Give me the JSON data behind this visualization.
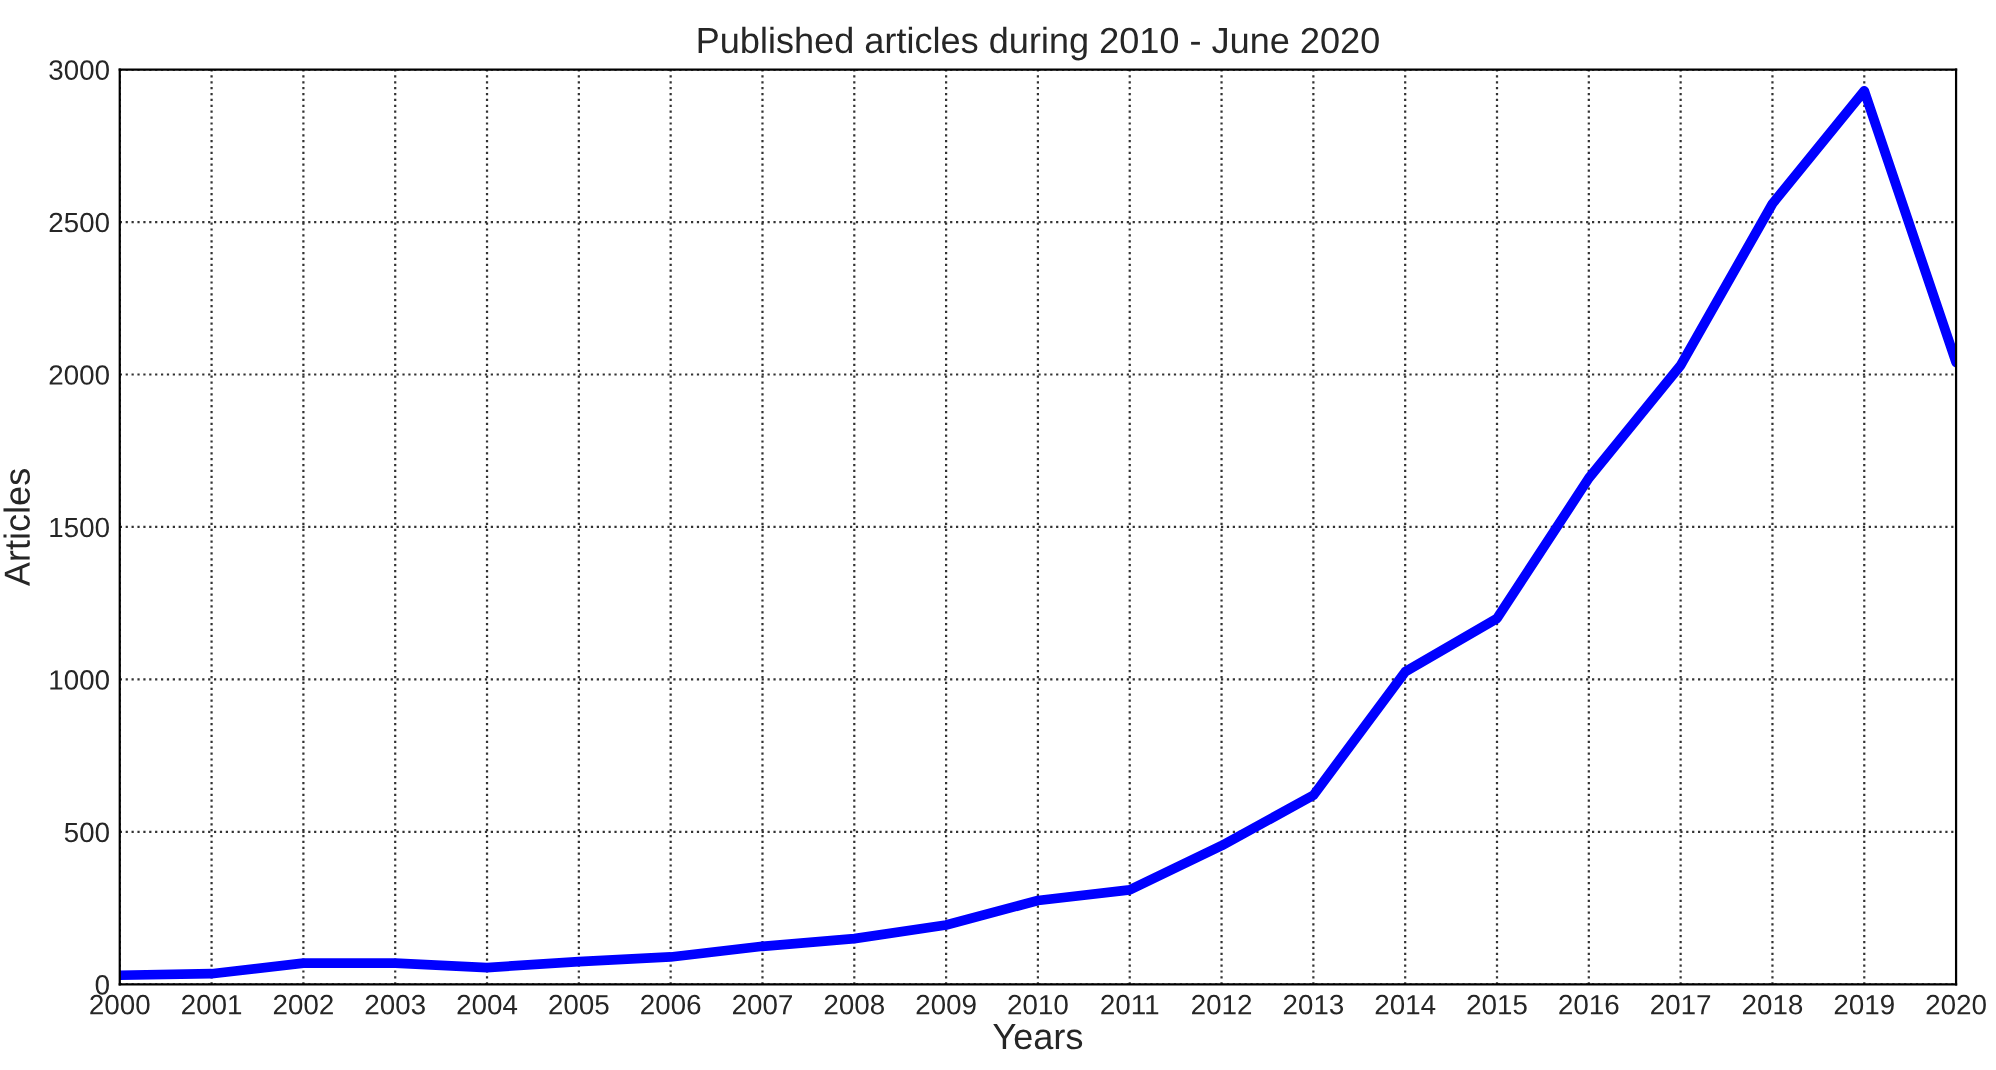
{
  "chart_data": {
    "type": "line",
    "title": "Published articles during 2010 - June 2020",
    "xlabel": "Years",
    "ylabel": "Articles",
    "x": [
      2000,
      2001,
      2002,
      2003,
      2004,
      2005,
      2006,
      2007,
      2008,
      2009,
      2010,
      2011,
      2012,
      2013,
      2014,
      2015,
      2016,
      2017,
      2018,
      2019,
      2020
    ],
    "series": [
      {
        "color": "#0000ff",
        "values": [
          30,
          35,
          70,
          70,
          55,
          75,
          90,
          125,
          150,
          195,
          275,
          310,
          455,
          620,
          1025,
          1200,
          1660,
          2030,
          2560,
          2930,
          2040
        ]
      }
    ],
    "xlim": [
      2000,
      2020
    ],
    "xticks": [
      2000,
      2001,
      2002,
      2003,
      2004,
      2005,
      2006,
      2007,
      2008,
      2009,
      2010,
      2011,
      2012,
      2013,
      2014,
      2015,
      2016,
      2017,
      2018,
      2019,
      2020
    ],
    "ylim": [
      0,
      3000
    ],
    "yticks": [
      0,
      500,
      1000,
      1500,
      2000,
      2500,
      3000
    ],
    "grid": true,
    "line_style": "solid",
    "marker": "none"
  }
}
